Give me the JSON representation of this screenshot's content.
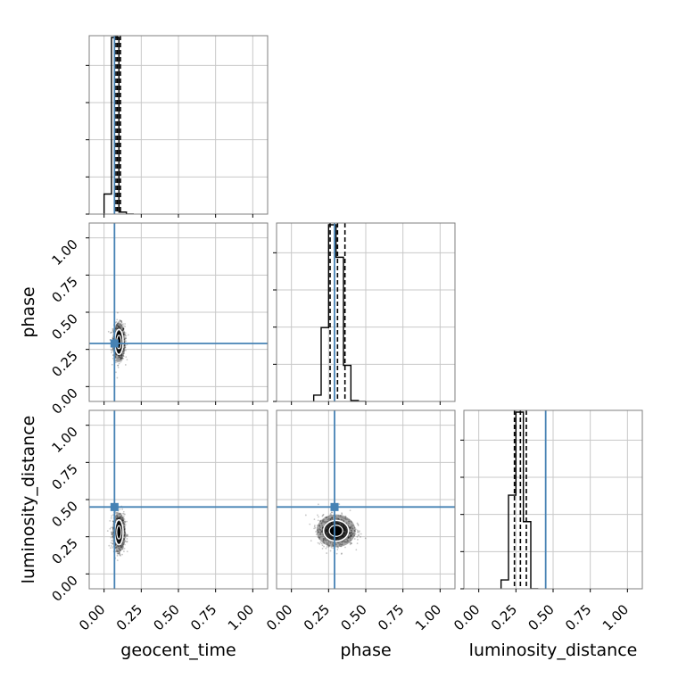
{
  "chart_data": {
    "type": "corner",
    "parameters": [
      "geocent_time",
      "phase",
      "luminosity_distance"
    ],
    "axis_labels": {
      "x": [
        "geocent_time",
        "phase",
        "luminosity_distance"
      ],
      "y": [
        "",
        "phase",
        "luminosity_distance"
      ]
    },
    "range": [
      -0.1,
      1.1
    ],
    "ticks": [
      0.0,
      0.25,
      0.5,
      0.75,
      1.0
    ],
    "tick_labels": [
      "0.00",
      "0.25",
      "0.50",
      "0.75",
      "1.00"
    ],
    "grid": true,
    "truths": {
      "geocent_time": 0.07,
      "phase": 0.29,
      "luminosity_distance": 0.45
    },
    "truth_color": "#4682b4",
    "hist_color": "#000000",
    "histograms": [
      {
        "param": "geocent_time",
        "bin_edges": [
          0.0,
          0.05,
          0.1,
          0.15,
          0.2
        ],
        "counts": [
          0.1,
          0.88,
          0.01,
          0.0
        ],
        "quantiles": [
          0.08,
          0.09,
          0.11
        ]
      },
      {
        "param": "phase",
        "bin_edges": [
          0.15,
          0.2,
          0.25,
          0.3,
          0.35,
          0.4,
          0.45,
          0.5
        ],
        "counts": [
          0.035,
          0.41,
          0.98,
          0.8,
          0.2,
          0.005,
          0.0
        ],
        "quantiles": [
          0.26,
          0.31,
          0.36
        ]
      },
      {
        "param": "luminosity_distance",
        "bin_edges": [
          0.15,
          0.2,
          0.25,
          0.3,
          0.35,
          0.4
        ],
        "counts": [
          0.05,
          0.53,
          1.0,
          0.38,
          0.0
        ],
        "quantiles": [
          0.24,
          0.28,
          0.32
        ]
      }
    ],
    "scatter_panels": [
      {
        "x": "geocent_time",
        "y": "phase",
        "center": [
          0.1,
          0.3
        ],
        "spread": [
          0.02,
          0.06
        ]
      },
      {
        "x": "geocent_time",
        "y": "luminosity_distance",
        "center": [
          0.1,
          0.28
        ],
        "spread": [
          0.02,
          0.06
        ]
      },
      {
        "x": "phase",
        "y": "luminosity_distance",
        "center": [
          0.3,
          0.29
        ],
        "spread": [
          0.06,
          0.05
        ]
      }
    ]
  }
}
